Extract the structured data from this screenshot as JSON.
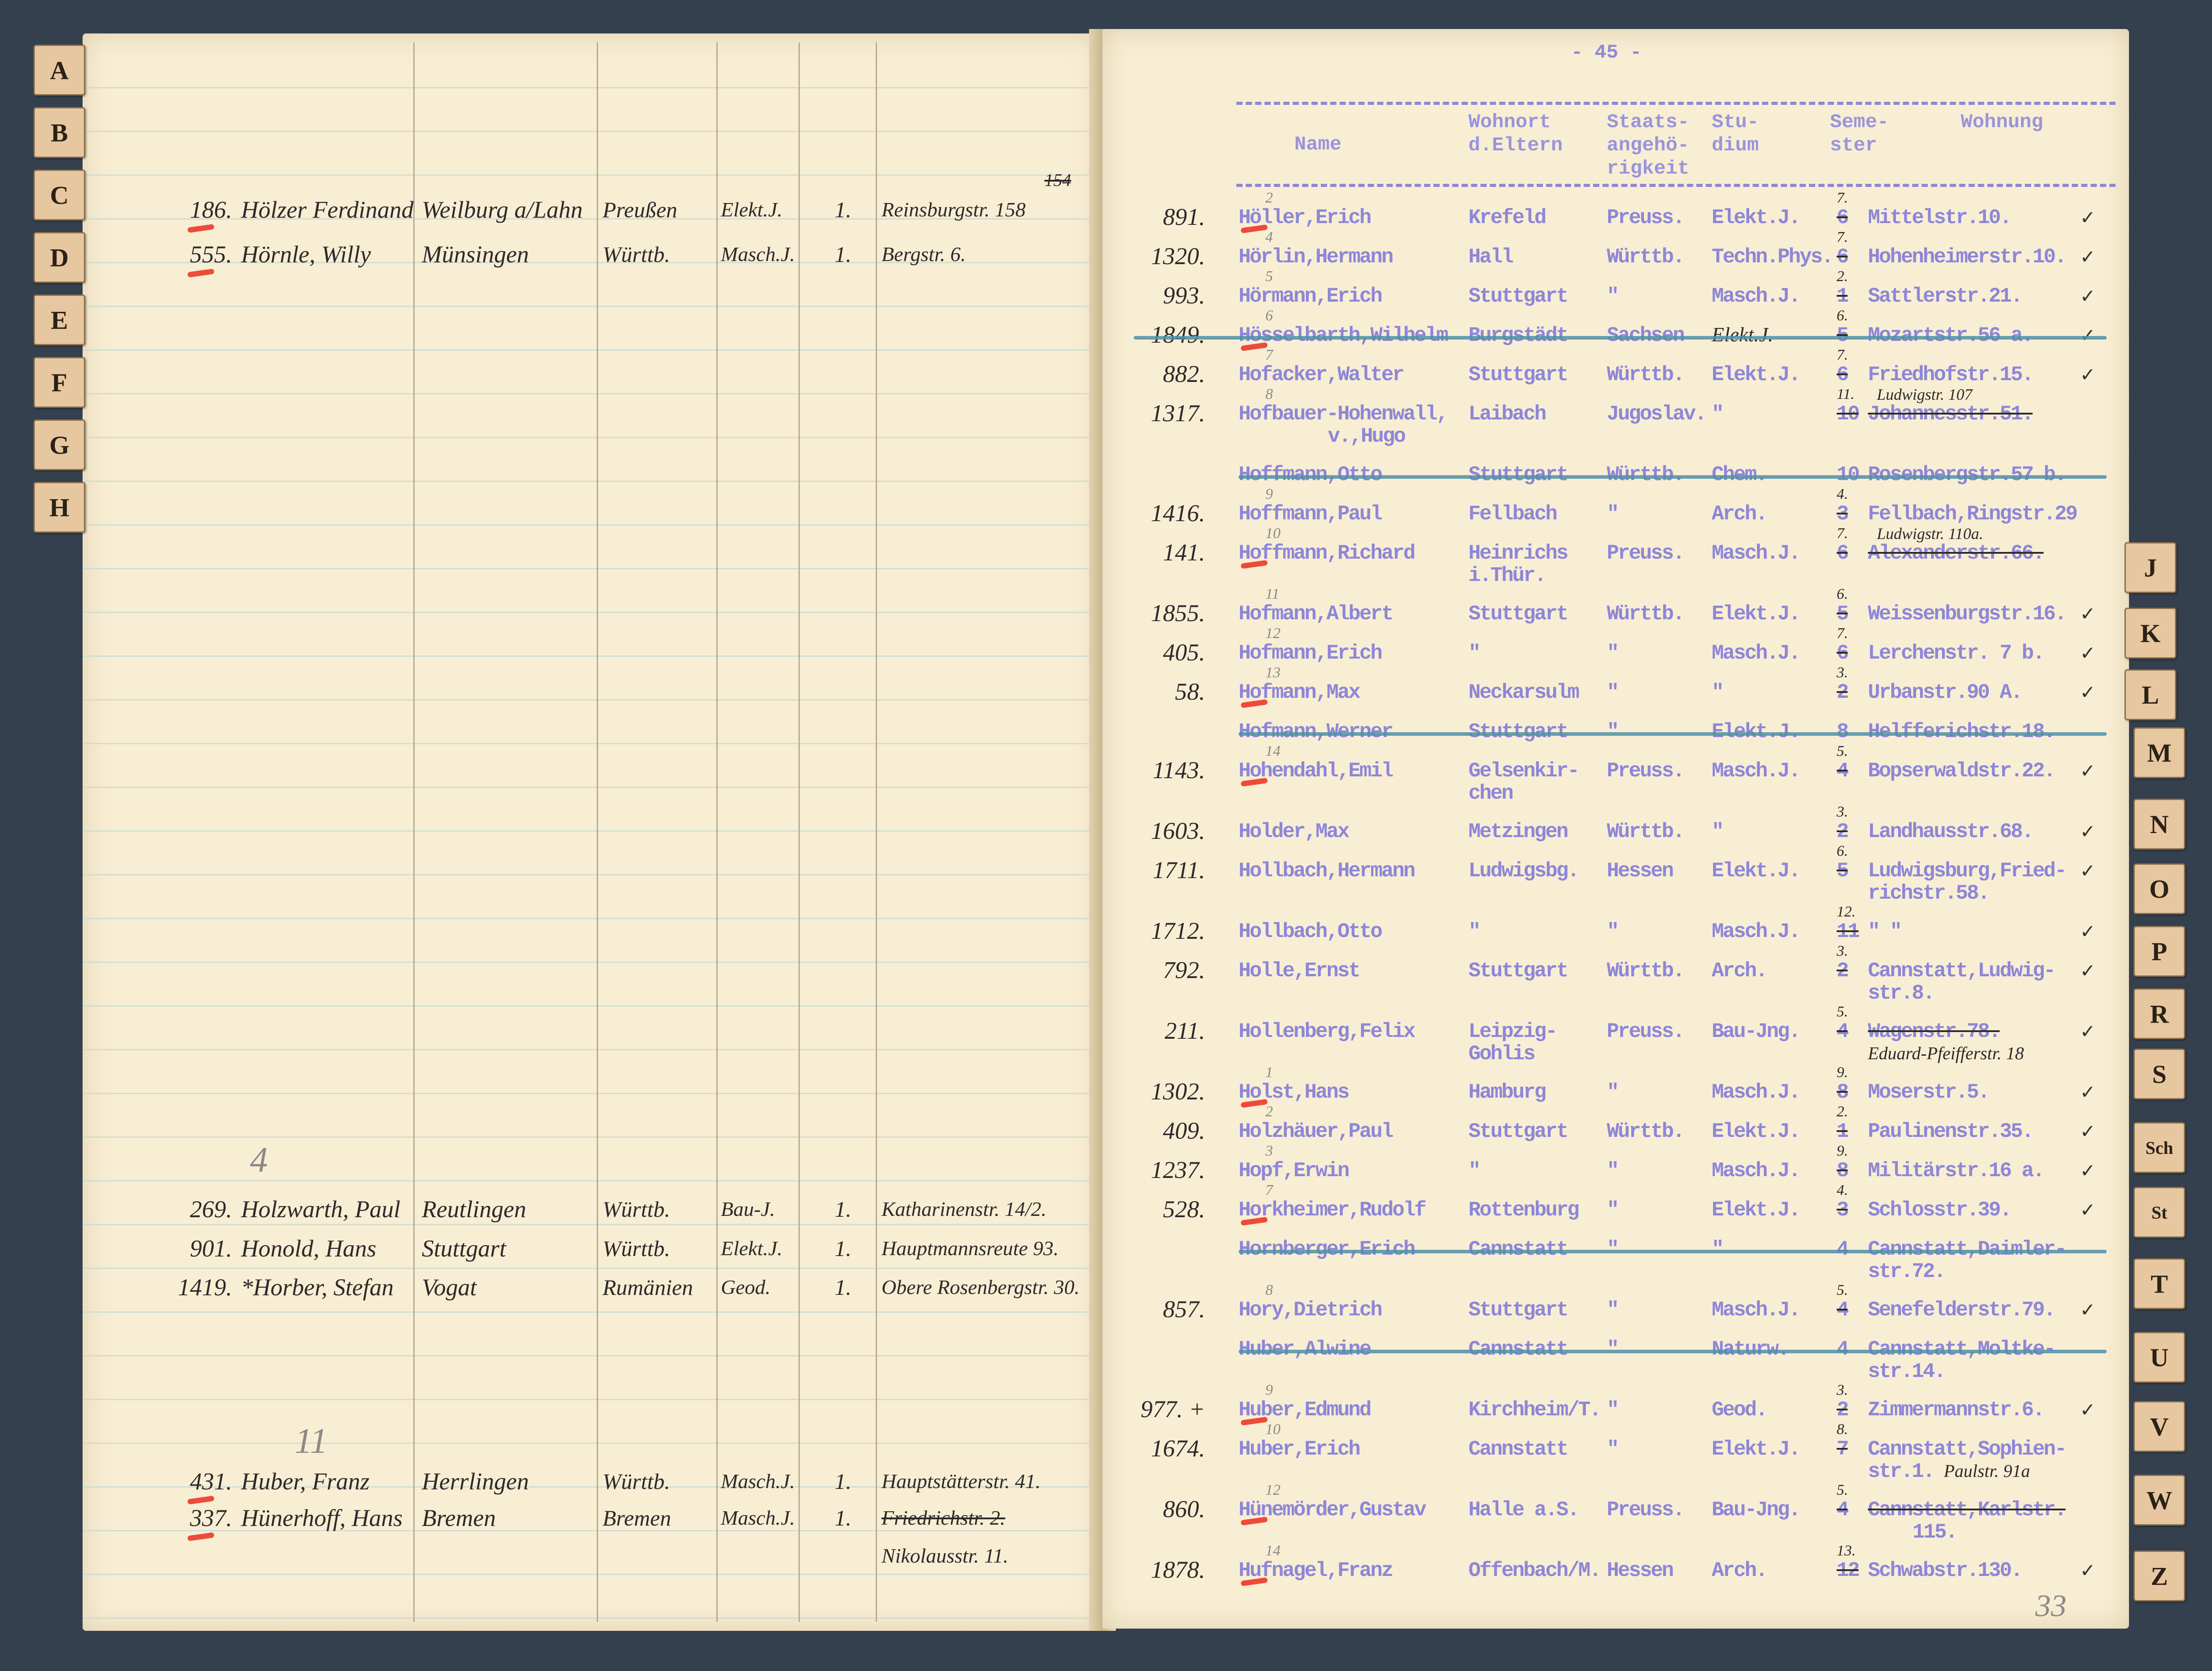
{
  "left_page": {
    "left_tabs": [
      "A",
      "B",
      "C",
      "D",
      "E",
      "F",
      "G",
      "H"
    ],
    "pencil_marks": [
      "4",
      "11"
    ],
    "entries": [
      {
        "num": "186.",
        "name": "Hölzer Ferdinand",
        "wohnort": "Weilburg a/Lahn",
        "staat": "Preußen",
        "studium": "Elekt.J.",
        "semester": "1.",
        "wohnung": "Reinsburgstr. 158",
        "wohnung_old": "154"
      },
      {
        "num": "555.",
        "name": "Hörnle, Willy",
        "wohnort": "Münsingen",
        "staat": "Württb.",
        "studium": "Masch.J.",
        "semester": "1.",
        "wohnung": "Bergstr. 6."
      },
      {
        "num": "269.",
        "name": "Holzwarth, Paul",
        "wohnort": "Reutlingen",
        "staat": "Württb.",
        "studium": "Bau-J.",
        "semester": "1.",
        "wohnung": "Katharinenstr. 14/2."
      },
      {
        "num": "901.",
        "name": "Honold, Hans",
        "wohnort": "Stuttgart",
        "staat": "Württb.",
        "studium": "Elekt.J.",
        "semester": "1.",
        "wohnung": "Hauptmannsreute 93."
      },
      {
        "num": "1419.",
        "name": "*Horber, Stefan",
        "wohnort": "Vogat",
        "staat": "Rumänien",
        "studium": "Geod.",
        "semester": "1.",
        "wohnung": "Obere Rosenbergstr. 30."
      },
      {
        "num": "431.",
        "name": "Huber, Franz",
        "wohnort": "Herrlingen",
        "staat": "Württb.",
        "studium": "Masch.J.",
        "semester": "1.",
        "wohnung": "Hauptstätterstr. 41."
      },
      {
        "num": "337.",
        "name": "Hünerhoff, Hans",
        "wohnort": "Bremen",
        "staat": "Bremen",
        "studium": "Masch.J.",
        "semester": "1.",
        "wohnung": "Nikolausstr. 11.",
        "wohnung_old": "Friedrichstr. 2."
      }
    ]
  },
  "right_page": {
    "page_number": "- 45 -",
    "corner_mark": "33",
    "right_tabs": [
      "J",
      "K",
      "L",
      "M",
      "N",
      "O",
      "P",
      "R",
      "S",
      "Sch",
      "St",
      "T",
      "U",
      "V",
      "W",
      "Z"
    ],
    "headers": {
      "name": "Name",
      "wohnort": "Wohnort\nd.Eltern",
      "staat": "Staats-\nangehö-\nrigkeit",
      "studium": "Stu-\ndium",
      "semester": "Seme-\nster",
      "wohnung": "Wohnung"
    },
    "rows": [
      {
        "num": "891.",
        "name": "Höller,Erich",
        "wohnort": "Krefeld",
        "staat": "Preuss.",
        "studium": "Elekt.J.",
        "sem_new": "7.",
        "sem_old": "6",
        "wohnung": "Mittelstr.10.",
        "pencil": "2",
        "red": true,
        "check": true
      },
      {
        "num": "1320.",
        "name": "Hörlin,Hermann",
        "wohnort": "Hall",
        "staat": "Württb.",
        "studium": "Techn.Phys.",
        "sem_new": "7.",
        "sem_old": "6",
        "wohnung": "Hohenheimerstr.10.",
        "pencil": "4",
        "check": true
      },
      {
        "num": "993.",
        "name": "Hörmann,Erich",
        "wohnort": "Stuttgart",
        "staat": "\"",
        "studium": "Masch.J.",
        "sem_new": "2.",
        "sem_old": "1",
        "wohnung": "Sattlerstr.21.",
        "pencil": "5",
        "check": true
      },
      {
        "num": "1849.",
        "name": "Hösselbarth,Wilhelm",
        "wohnort": "Burgstädt",
        "staat": "Sachsen",
        "studium_hand": "Elekt.J.",
        "sem_new": "6.",
        "sem_old": "5",
        "wohnung": "Mozartstr.56 a.",
        "pencil": "6",
        "red": true,
        "struck": true,
        "check": true
      },
      {
        "num": "882.",
        "name": "Hofacker,Walter",
        "wohnort": "Stuttgart",
        "staat": "Württb.",
        "studium": "Elekt.J.",
        "sem_new": "7.",
        "sem_old": "6",
        "wohnung": "Friedhofstr.15.",
        "pencil": "7",
        "check": true
      },
      {
        "num": "1317.",
        "name": "Hofbauer-Hohenwall,",
        "name2": "v.,Hugo",
        "wohnort": "Laibach",
        "staat": "Jugoslav.",
        "studium": "\"",
        "sem_new": "11.",
        "sem_old": "10",
        "wohnung": "Johannesstr.51.",
        "wohnung_struck": true,
        "wohnung_new": "Ludwigstr. 107",
        "pencil": "8"
      },
      {
        "num": "",
        "name": "Hoffmann,Otto",
        "wohnort": "Stuttgart",
        "staat": "Württb.",
        "studium": "Chem.",
        "sem_old": "10",
        "wohnung": "Rosenbergstr.57 b.",
        "struck": true
      },
      {
        "num": "1416.",
        "name": "Hoffmann,Paul",
        "wohnort": "Fellbach",
        "staat": "\"",
        "studium": "Arch.",
        "sem_new": "4.",
        "sem_old": "3",
        "wohnung": "Fellbach,Ringstr.29",
        "pencil": "9"
      },
      {
        "num": "141.",
        "name": "Hoffmann,Richard",
        "wohnort": "Heinrichs",
        "wohnort2": "i.Thür.",
        "staat": "Preuss.",
        "studium": "Masch.J.",
        "sem_new": "7.",
        "sem_old": "6",
        "wohnung": "Alexanderstr.66.",
        "wohnung_struck": true,
        "wohnung_new": "Ludwigstr. 110a.",
        "pencil": "10",
        "red": true
      },
      {
        "num": "1855.",
        "name": "Hofmann,Albert",
        "wohnort": "Stuttgart",
        "staat": "Württb.",
        "studium": "Elekt.J.",
        "sem_new": "6.",
        "sem_old": "5",
        "wohnung": "Weissenburgstr.16.",
        "pencil": "11",
        "check": true
      },
      {
        "num": "405.",
        "name": "Hofmann,Erich",
        "wohnort": "\"",
        "staat": "\"",
        "studium": "Masch.J.",
        "sem_new": "7.",
        "sem_old": "6",
        "wohnung": "Lerchenstr. 7 b.",
        "pencil": "12",
        "check": true
      },
      {
        "num": "58.",
        "name": "Hofmann,Max",
        "wohnort": "Neckarsulm",
        "staat": "\"",
        "studium": "\"",
        "sem_new": "3.",
        "sem_old": "2",
        "wohnung": "Urbanstr.90 A.",
        "pencil": "13",
        "red": true,
        "check": true
      },
      {
        "num": "",
        "name": "Hofmann,Werner",
        "wohnort": "Stuttgart",
        "staat": "\"",
        "studium": "Elekt.J.",
        "sem_old": "8",
        "wohnung": "Helfferichstr.18.",
        "struck": true
      },
      {
        "num": "1143.",
        "name": "Hohendahl,Emil",
        "wohnort": "Gelsenkir-",
        "wohnort2": "chen",
        "staat": "Preuss.",
        "studium": "Masch.J.",
        "sem_new": "5.",
        "sem_old": "4",
        "wohnung": "Bopserwaldstr.22.",
        "pencil": "14",
        "red": true,
        "check": true
      },
      {
        "num": "1603.",
        "name": "Holder,Max",
        "wohnort": "Metzingen",
        "staat": "Württb.",
        "studium": "\"",
        "sem_new": "3.",
        "sem_old": "2",
        "wohnung": "Landhausstr.68.",
        "check": true
      },
      {
        "num": "1711.",
        "name": "Hollbach,Hermann",
        "wohnort": "Ludwigsbg.",
        "staat": "Hessen",
        "studium": "Elekt.J.",
        "sem_new": "6.",
        "sem_old": "5",
        "wohnung": "Ludwigsburg,Fried-",
        "wohnung2": "richstr.58.",
        "check": true
      },
      {
        "num": "1712.",
        "name": "Hollbach,Otto",
        "wohnort": "\"",
        "staat": "\"",
        "studium": "Masch.J.",
        "sem_new": "12.",
        "sem_old": "11",
        "wohnung": "\"      \"",
        "check": true
      },
      {
        "num": "792.",
        "name": "Holle,Ernst",
        "wohnort": "Stuttgart",
        "staat": "Württb.",
        "studium": "Arch.",
        "sem_new": "3.",
        "sem_old": "2",
        "wohnung": "Cannstatt,Ludwig-",
        "wohnung2": "str.8.",
        "check": true
      },
      {
        "num": "211.",
        "name": "Hollenberg,Felix",
        "wohnort": "Leipzig-",
        "wohnort2": "Gohlis",
        "staat": "Preuss.",
        "studium": "Bau-Jng.",
        "sem_new": "5.",
        "sem_old": "4",
        "wohnung": "Wagenstr.78.",
        "wohnung_struck": true,
        "wohnung_new": "Eduard-Pfeifferstr. 18",
        "check": true
      },
      {
        "num": "1302.",
        "name": "Holst,Hans",
        "wohnort": "Hamburg",
        "staat": "\"",
        "studium": "Masch.J.",
        "sem_new": "9.",
        "sem_old": "8",
        "wohnung": "Moserstr.5.",
        "pencil": "1",
        "red": true,
        "check": true
      },
      {
        "num": "409.",
        "name": "Holzhäuer,Paul",
        "wohnort": "Stuttgart",
        "staat": "Württb.",
        "studium": "Elekt.J.",
        "sem_new": "2.",
        "sem_old": "1",
        "wohnung": "Paulinenstr.35.",
        "pencil": "2",
        "check": true
      },
      {
        "num": "1237.",
        "name": "Hopf,Erwin",
        "wohnort": "\"",
        "staat": "\"",
        "studium": "Masch.J.",
        "sem_new": "9.",
        "sem_old": "8",
        "wohnung": "Militärstr.16 a.",
        "pencil": "3",
        "check": true
      },
      {
        "num": "528.",
        "name": "Horkheimer,Rudolf",
        "wohnort": "Rottenburg",
        "staat": "\"",
        "studium": "Elekt.J.",
        "sem_new": "4.",
        "sem_old": "3",
        "wohnung": "Schlosstr.39.",
        "pencil": "7",
        "red": true,
        "check": true
      },
      {
        "num": "",
        "name": "Hornberger,Erich",
        "wohnort": "Cannstatt",
        "staat": "\"",
        "studium": "\"",
        "sem_old": "4",
        "wohnung": "Cannstatt,Daimler-",
        "wohnung2": "str.72.",
        "struck": true
      },
      {
        "num": "857.",
        "name": "Hory,Dietrich",
        "wohnort": "Stuttgart",
        "staat": "\"",
        "studium": "Masch.J.",
        "sem_new": "5.",
        "sem_old": "4",
        "wohnung": "Senefelderstr.79.",
        "pencil": "8",
        "check": true
      },
      {
        "num": "",
        "name": "Huber,Alwine",
        "wohnort": "Cannstatt",
        "staat": "\"",
        "studium": "Naturw.",
        "sem_old": "4",
        "wohnung": "Cannstatt,Moltke-",
        "wohnung2": "str.14.",
        "struck": true
      },
      {
        "num": "977. +",
        "name": "Huber,Edmund",
        "wohnort": "Kirchheim/T.",
        "staat": "\"",
        "studium": "Geod.",
        "sem_new": "3.",
        "sem_old": "2",
        "wohnung": "Zimmermannstr.6.",
        "pencil": "9",
        "red": true,
        "check": true
      },
      {
        "num": "1674.",
        "name": "Huber,Erich",
        "wohnort": "Cannstatt",
        "staat": "\"",
        "studium": "Elekt.J.",
        "sem_new": "8.",
        "sem_old": "7",
        "wohnung": "Cannstatt,Sophien-",
        "wohnung2": "str.1.",
        "wohnung_new": "Paulstr. 91a",
        "pencil": "10"
      },
      {
        "num": "860.",
        "name": "Hünemörder,Gustav",
        "wohnort": "Halle a.S.",
        "staat": "Preuss.",
        "studium": "Bau-Jng.",
        "sem_new": "5.",
        "sem_old": "4",
        "wohnung": "Cannstatt,Karlstr.",
        "wohnung2": "115.",
        "wohnung_struck": true,
        "pencil": "12",
        "red": true
      },
      {
        "num": "1878.",
        "name": "Hufnagel,Franz",
        "wohnort": "Offenbach/M.",
        "staat": "Hessen",
        "studium": "Arch.",
        "sem_new": "13.",
        "sem_old": "12",
        "wohnung": "Schwabstr.130.",
        "pencil": "14",
        "red": true,
        "check": true
      }
    ]
  }
}
